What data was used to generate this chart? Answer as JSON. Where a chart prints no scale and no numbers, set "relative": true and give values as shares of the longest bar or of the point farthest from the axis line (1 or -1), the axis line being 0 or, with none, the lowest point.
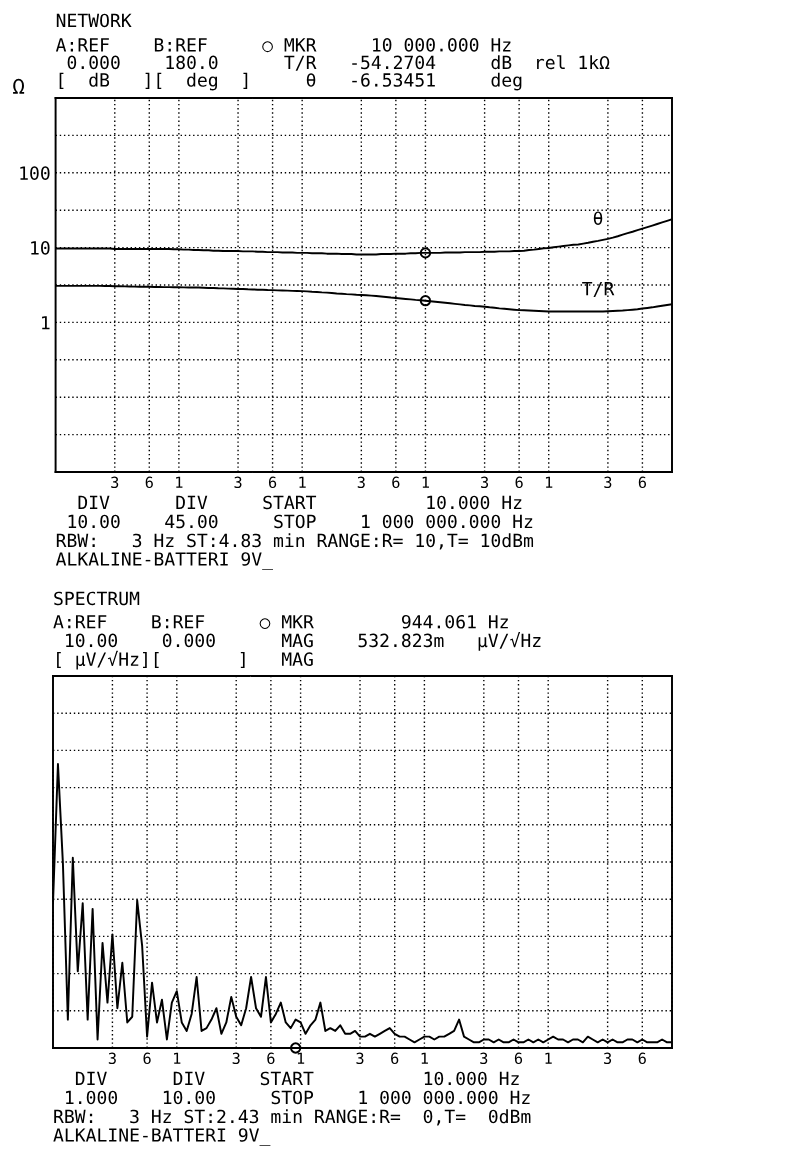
{
  "chart_data": [
    {
      "type": "line",
      "title": "NETWORK",
      "subtitle": "A:REF    B:REF     ○ MKR     10 000.000 Hz\n 0.000    180.0      T/R   -54.2704     dB  rel 1kΩ\n[  dB   ][  deg  ]     θ   -6.53451     deg",
      "ylabel": "Ω",
      "log": "y",
      "grid": true,
      "line_style": "solid",
      "categories": [
        null,
        null,
        null,
        null,
        null,
        null,
        null,
        null,
        null,
        null,
        null,
        null,
        "3",
        null,
        null,
        null,
        null,
        null,
        null,
        "6",
        null,
        null,
        null,
        null,
        null,
        "1",
        null,
        null,
        null,
        null,
        null,
        null,
        null,
        null,
        null,
        null,
        null,
        "3",
        null,
        null,
        null,
        null,
        null,
        null,
        "6",
        null,
        null,
        null,
        null,
        null,
        "1",
        null,
        null,
        null,
        null,
        null,
        null,
        null,
        null,
        null,
        null,
        null,
        "3",
        null,
        null,
        null,
        null,
        null,
        null,
        "6",
        null,
        null,
        null,
        null,
        null,
        "1",
        null,
        null,
        null,
        null,
        null,
        null,
        null,
        null,
        null,
        null,
        null,
        "3",
        null,
        null,
        null,
        null,
        null,
        null,
        "6",
        null,
        null,
        null,
        null,
        null,
        "1",
        null,
        null,
        null,
        null,
        null,
        null,
        null,
        null,
        null,
        null,
        null,
        "3",
        null,
        null,
        null,
        null,
        null,
        null,
        "6",
        null,
        null,
        null,
        null,
        null,
        null
      ],
      "ylim": [
        0.01,
        1000
      ],
      "yticks": [
        {
          "value": 0.03162,
          "label": null
        },
        {
          "value": 0.1,
          "label": null
        },
        {
          "value": 0.3162,
          "label": null
        },
        1,
        {
          "value": 3.162,
          "label": null
        },
        10,
        {
          "value": 31.62,
          "label": null
        },
        100,
        {
          "value": 316.2,
          "label": null
        }
      ],
      "series": [
        {
          "name": "θ",
          "color": "#000000",
          "values": [
            9.7,
            9.7,
            9.7,
            9.7,
            9.7,
            9.7,
            9.7,
            9.7,
            9.7,
            9.7,
            9.7,
            9.7,
            9.6,
            9.6,
            9.6,
            9.6,
            9.6,
            9.6,
            9.6,
            9.6,
            9.6,
            9.6,
            9.6,
            9.6,
            9.5,
            9.5,
            9.4,
            9.4,
            9.3,
            9.3,
            9.2,
            9.2,
            9.1,
            9.1,
            9.0,
            9.0,
            9.0,
            9.0,
            8.9,
            8.9,
            8.9,
            8.8,
            8.8,
            8.7,
            8.7,
            8.7,
            8.6,
            8.6,
            8.6,
            8.5,
            8.5,
            8.5,
            8.4,
            8.4,
            8.4,
            8.3,
            8.3,
            8.3,
            8.2,
            8.2,
            8.2,
            8.1,
            8.1,
            8.1,
            8.1,
            8.1,
            8.2,
            8.2,
            8.2,
            8.3,
            8.3,
            8.3,
            8.4,
            8.4,
            8.5,
            8.5,
            8.5,
            8.5,
            8.5,
            8.6,
            8.6,
            8.6,
            8.6,
            8.7,
            8.7,
            8.7,
            8.7,
            8.8,
            8.8,
            8.8,
            8.9,
            8.9,
            8.9,
            9.0,
            9.0,
            9.1,
            9.3,
            9.4,
            9.6,
            9.8,
            9.9,
            10.1,
            10.3,
            10.5,
            10.7,
            10.9,
            11.0,
            11.3,
            11.6,
            12.0,
            12.3,
            12.7,
            13.1,
            13.6,
            14.2,
            14.9,
            15.6,
            16.3,
            17.1,
            17.9,
            18.8,
            19.7,
            20.7,
            21.7,
            22.8,
            23.9
          ]
        },
        {
          "name": "T/R",
          "color": "#000000",
          "values": [
            3.08,
            3.08,
            3.08,
            3.08,
            3.08,
            3.08,
            3.08,
            3.08,
            3.08,
            3.08,
            3.07,
            3.06,
            3.05,
            3.04,
            3.03,
            3.02,
            3.01,
            3.0,
            2.99,
            2.99,
            2.98,
            2.97,
            2.96,
            2.96,
            2.95,
            2.95,
            2.94,
            2.93,
            2.93,
            2.92,
            2.91,
            2.89,
            2.88,
            2.86,
            2.85,
            2.83,
            2.82,
            2.8,
            2.79,
            2.77,
            2.76,
            2.74,
            2.73,
            2.71,
            2.7,
            2.68,
            2.67,
            2.66,
            2.64,
            2.63,
            2.62,
            2.6,
            2.57,
            2.55,
            2.52,
            2.5,
            2.47,
            2.44,
            2.42,
            2.39,
            2.37,
            2.34,
            2.32,
            2.3,
            2.28,
            2.25,
            2.22,
            2.19,
            2.15,
            2.12,
            2.09,
            2.06,
            2.03,
            2.0,
            1.98,
            1.95,
            1.92,
            1.89,
            1.86,
            1.83,
            1.8,
            1.77,
            1.74,
            1.71,
            1.69,
            1.66,
            1.64,
            1.62,
            1.59,
            1.57,
            1.54,
            1.52,
            1.5,
            1.48,
            1.46,
            1.45,
            1.44,
            1.43,
            1.42,
            1.41,
            1.4,
            1.4,
            1.4,
            1.4,
            1.4,
            1.4,
            1.4,
            1.4,
            1.4,
            1.4,
            1.4,
            1.4,
            1.41,
            1.42,
            1.43,
            1.44,
            1.46,
            1.48,
            1.5,
            1.53,
            1.56,
            1.59,
            1.63,
            1.67,
            1.71,
            1.75
          ]
        },
        {
          "type": "scatter",
          "marker": "circle",
          "color": "#000000",
          "values": [
            null,
            null,
            null,
            null,
            null,
            null,
            null,
            null,
            null,
            null,
            null,
            null,
            null,
            null,
            null,
            null,
            null,
            null,
            null,
            null,
            null,
            null,
            null,
            null,
            null,
            null,
            null,
            null,
            null,
            null,
            null,
            null,
            null,
            null,
            null,
            null,
            null,
            null,
            null,
            null,
            null,
            null,
            null,
            null,
            null,
            null,
            null,
            null,
            null,
            null,
            null,
            null,
            null,
            null,
            null,
            null,
            null,
            null,
            null,
            null,
            null,
            null,
            null,
            null,
            null,
            null,
            null,
            null,
            null,
            null,
            null,
            null,
            null,
            null,
            null,
            8.5,
            null,
            null,
            null,
            null,
            null,
            null,
            null,
            null,
            null,
            null,
            null,
            null,
            null,
            null,
            null,
            null,
            null,
            null,
            null,
            null,
            null,
            null,
            null,
            null,
            null,
            null,
            null,
            null,
            null,
            null,
            null,
            null,
            null,
            null,
            null,
            null,
            null,
            null,
            null,
            null,
            null,
            null,
            null,
            null,
            null,
            null,
            null,
            null,
            null,
            null
          ]
        },
        {
          "type": "scatter",
          "marker": "circle",
          "color": "#000000",
          "values": [
            null,
            null,
            null,
            null,
            null,
            null,
            null,
            null,
            null,
            null,
            null,
            null,
            null,
            null,
            null,
            null,
            null,
            null,
            null,
            null,
            null,
            null,
            null,
            null,
            null,
            null,
            null,
            null,
            null,
            null,
            null,
            null,
            null,
            null,
            null,
            null,
            null,
            null,
            null,
            null,
            null,
            null,
            null,
            null,
            null,
            null,
            null,
            null,
            null,
            null,
            null,
            null,
            null,
            null,
            null,
            null,
            null,
            null,
            null,
            null,
            null,
            null,
            null,
            null,
            null,
            null,
            null,
            null,
            null,
            null,
            null,
            null,
            null,
            null,
            null,
            1.95,
            null,
            null,
            null,
            null,
            null,
            null,
            null,
            null,
            null,
            null,
            null,
            null,
            null,
            null,
            null,
            null,
            null,
            null,
            null,
            null,
            null,
            null,
            null,
            null,
            null,
            null,
            null,
            null,
            null,
            null,
            null,
            null,
            null,
            null,
            null,
            null,
            null,
            null,
            null,
            null,
            null,
            null,
            null,
            null,
            null,
            null,
            null,
            null,
            null,
            null
          ]
        }
      ],
      "annotations": [
        "  DIV      DIV     START          10.000 Hz",
        " 10.00    45.00     STOP    1 000 000.000 Hz",
        "RBW:   3 Hz ST:4.83 min RANGE:R= 10,T= 10dBm",
        "ALKALINE-BATTERI 9V_"
      ]
    },
    {
      "type": "line",
      "title": "SPECTRUM",
      "subtitle": "A:REF    B:REF     ○ MKR        944.061 Hz\n 10.00    0.000      MAG    532.823m   µV/√Hz\n[ µV/√Hz][       ]   MAG",
      "grid": true,
      "relative": true,
      "tick_labels": "x",
      "line_style": "solid",
      "categories": [
        null,
        null,
        null,
        null,
        null,
        null,
        null,
        null,
        null,
        null,
        null,
        null,
        "3",
        null,
        null,
        null,
        null,
        null,
        null,
        "6",
        null,
        null,
        null,
        null,
        null,
        "1",
        null,
        null,
        null,
        null,
        null,
        null,
        null,
        null,
        null,
        null,
        null,
        "3",
        null,
        null,
        null,
        null,
        null,
        null,
        "6",
        null,
        null,
        null,
        null,
        null,
        "1",
        null,
        null,
        null,
        null,
        null,
        null,
        null,
        null,
        null,
        null,
        null,
        "3",
        null,
        null,
        null,
        null,
        null,
        null,
        "6",
        null,
        null,
        null,
        null,
        null,
        "1",
        null,
        null,
        null,
        null,
        null,
        null,
        null,
        null,
        null,
        null,
        null,
        "3",
        null,
        null,
        null,
        null,
        null,
        null,
        "6",
        null,
        null,
        null,
        null,
        null,
        "1",
        null,
        null,
        null,
        null,
        null,
        null,
        null,
        null,
        null,
        null,
        null,
        "3",
        null,
        null,
        null,
        null,
        null,
        null,
        "6",
        null,
        null,
        null,
        null,
        null,
        null
      ],
      "series": [
        {
          "color": "#000000",
          "values": [
            0.51,
            1.0,
            0.65,
            0.1,
            0.67,
            0.27,
            0.51,
            0.1,
            0.49,
            0.03,
            0.37,
            0.16,
            0.4,
            0.14,
            0.3,
            0.09,
            0.11,
            0.52,
            0.36,
            0.04,
            0.23,
            0.09,
            0.17,
            0.03,
            0.16,
            0.2,
            0.09,
            0.06,
            0.12,
            0.25,
            0.06,
            0.07,
            0.1,
            0.14,
            0.05,
            0.09,
            0.18,
            0.11,
            0.08,
            0.14,
            0.25,
            0.14,
            0.11,
            0.25,
            0.09,
            0.12,
            0.16,
            0.09,
            0.07,
            0.1,
            0.09,
            0.05,
            0.08,
            0.1,
            0.16,
            0.06,
            0.07,
            0.06,
            0.08,
            0.05,
            0.05,
            0.06,
            0.04,
            0.04,
            0.05,
            0.04,
            0.05,
            0.06,
            0.07,
            0.05,
            0.04,
            0.04,
            0.03,
            0.02,
            0.03,
            0.04,
            0.04,
            0.03,
            0.04,
            0.04,
            0.05,
            0.06,
            0.1,
            0.04,
            0.03,
            0.02,
            0.02,
            0.03,
            0.03,
            0.02,
            0.03,
            0.02,
            0.02,
            0.03,
            0.02,
            0.02,
            0.03,
            0.02,
            0.03,
            0.02,
            0.03,
            0.04,
            0.03,
            0.03,
            0.02,
            0.03,
            0.03,
            0.02,
            0.04,
            0.03,
            0.02,
            0.03,
            0.02,
            0.03,
            0.02,
            0.02,
            0.03,
            0.03,
            0.02,
            0.03,
            0.02,
            0.02,
            0.02,
            0.03,
            0.02,
            0.02
          ]
        },
        {
          "type": "scatter",
          "marker": "circle",
          "color": "#000000",
          "values": [
            null,
            null,
            null,
            null,
            null,
            null,
            null,
            null,
            null,
            null,
            null,
            null,
            null,
            null,
            null,
            null,
            null,
            null,
            null,
            null,
            null,
            null,
            null,
            null,
            null,
            null,
            null,
            null,
            null,
            null,
            null,
            null,
            null,
            null,
            null,
            null,
            null,
            null,
            null,
            null,
            null,
            null,
            null,
            null,
            null,
            null,
            null,
            null,
            null,
            0,
            null,
            null,
            null,
            null,
            null,
            null,
            null,
            null,
            null,
            null,
            null,
            null,
            null,
            null,
            null,
            null,
            null,
            null,
            null,
            null,
            null,
            null,
            null,
            null,
            null,
            null,
            null,
            null,
            null,
            null,
            null,
            null,
            null,
            null,
            null,
            null,
            null,
            null,
            null,
            null,
            null,
            null,
            null,
            null,
            null,
            null,
            null,
            null,
            null,
            null,
            null,
            null,
            null,
            null,
            null,
            null,
            null,
            null,
            null,
            null,
            null,
            null,
            null,
            null,
            null,
            null,
            null,
            null,
            null,
            null,
            null,
            null,
            null,
            null,
            null,
            null
          ]
        }
      ],
      "annotations": [
        "  DIV      DIV     START          10.000 Hz",
        " 1.000    10.00     STOP    1 000 000.000 Hz",
        "RBW:   3 Hz ST:2.43 min RANGE:R=  0,T=  0dBm",
        "ALKALINE-BATTERI 9V_"
      ]
    }
  ]
}
